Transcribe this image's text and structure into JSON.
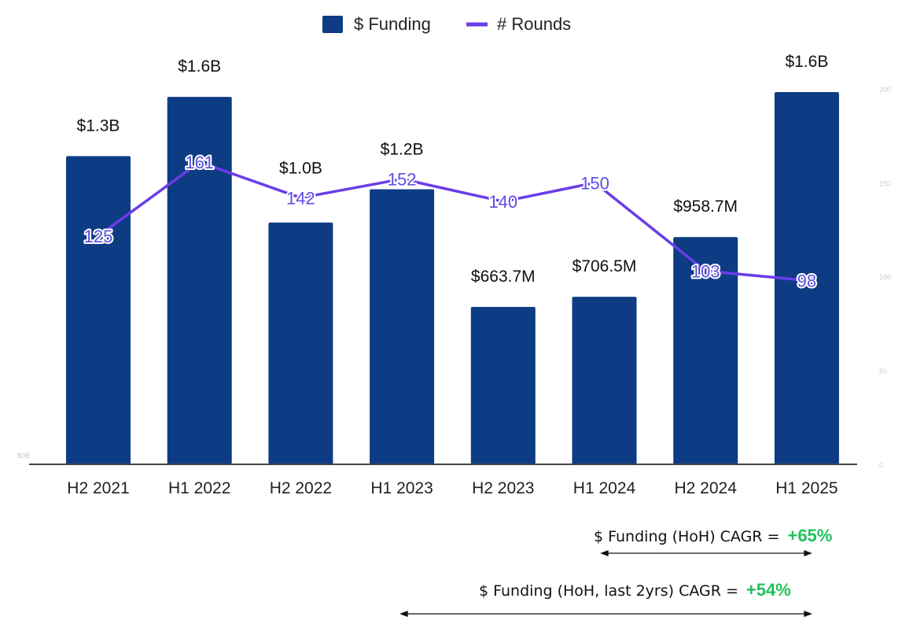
{
  "chart_data": {
    "type": "bar+line",
    "categories": [
      "H2 2021",
      "H1 2022",
      "H2 2022",
      "H1 2023",
      "H2 2023",
      "H1 2024",
      "H2 2024",
      "H1 2025"
    ],
    "series": [
      {
        "name": "$ Funding",
        "type": "bar",
        "axis": "left",
        "unit": "USD millions",
        "values": [
          1300,
          1550,
          1020,
          1160,
          663.7,
          706.5,
          958.7,
          1570
        ],
        "labels": [
          "$1.3B",
          "$1.6B",
          "$1.0B",
          "$1.2B",
          "$663.7M",
          "$706.5M",
          "$958.7M",
          "$1.6B"
        ],
        "color": "#0d3c84"
      },
      {
        "name": "# Rounds",
        "type": "line",
        "axis": "right",
        "values": [
          125,
          161,
          142,
          152,
          140,
          150,
          103,
          98
        ],
        "color": "#6a3de8"
      }
    ],
    "left_axis": {
      "ylim": [
        0,
        1600
      ],
      "tick_labels": [
        "$0B"
      ]
    },
    "right_axis": {
      "ylim": [
        0,
        200
      ],
      "tick_labels": [
        "0",
        "50",
        "100",
        "150",
        "200"
      ]
    },
    "legend": "top-center",
    "grid": false
  },
  "annotations": [
    {
      "text": "$ Funding (HoH) CAGR =",
      "value": "+65%"
    },
    {
      "text": "$ Funding (HoH, last 2yrs) CAGR =",
      "value": "+54%"
    }
  ]
}
